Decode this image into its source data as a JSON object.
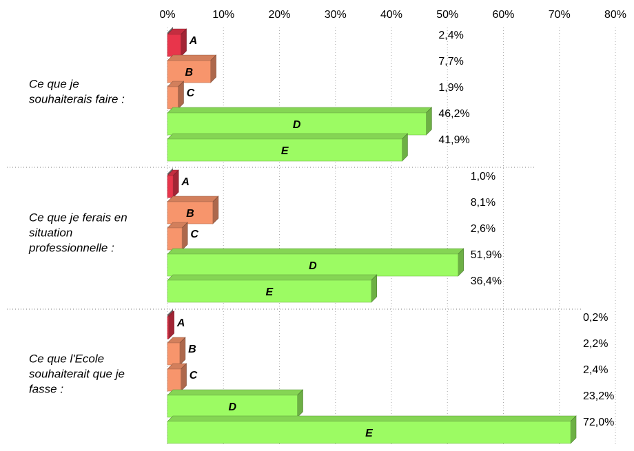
{
  "chart_data": {
    "type": "hbar3d",
    "categories": [
      [
        "Ce que je",
        "souhaiterais faire :"
      ],
      [
        "Ce que je ferais en",
        "situation",
        "professionnelle :"
      ],
      [
        "Ce que l'Ecole",
        "souhaiterait que je",
        "fasse :"
      ]
    ],
    "series": [
      {
        "name": "A",
        "color": "#e8354b",
        "values": [
          2.4,
          1.0,
          0.2
        ],
        "value_labels": [
          "2,4%",
          "1,0%",
          "0,2%"
        ]
      },
      {
        "name": "B",
        "color": "#f7956c",
        "values": [
          7.7,
          8.1,
          2.2
        ],
        "value_labels": [
          "7,7%",
          "8,1%",
          "2,2%"
        ]
      },
      {
        "name": "C",
        "color": "#f7956c",
        "values": [
          1.9,
          2.6,
          2.4
        ],
        "value_labels": [
          "1,9%",
          "2,6%",
          "2,4%"
        ]
      },
      {
        "name": "D",
        "color": "#9cfb63",
        "values": [
          46.2,
          51.9,
          23.2
        ],
        "value_labels": [
          "46,2%",
          "51,9%",
          "23,2%"
        ]
      },
      {
        "name": "E",
        "color": "#9cfb63",
        "values": [
          41.9,
          36.4,
          72.0
        ],
        "value_labels": [
          "41,9%",
          "36,4%",
          "72,0%"
        ]
      }
    ],
    "xlim": [
      0,
      80
    ],
    "xticks": [
      {
        "value": 0,
        "label": "0%"
      },
      {
        "value": 10,
        "label": "10%"
      },
      {
        "value": 20,
        "label": "20%"
      },
      {
        "value": 30,
        "label": "30%"
      },
      {
        "value": 40,
        "label": "40%"
      },
      {
        "value": 50,
        "label": "50%"
      },
      {
        "value": 60,
        "label": "60%"
      },
      {
        "value": 70,
        "label": "70%"
      },
      {
        "value": 80,
        "label": "80%"
      }
    ],
    "grid": true
  }
}
